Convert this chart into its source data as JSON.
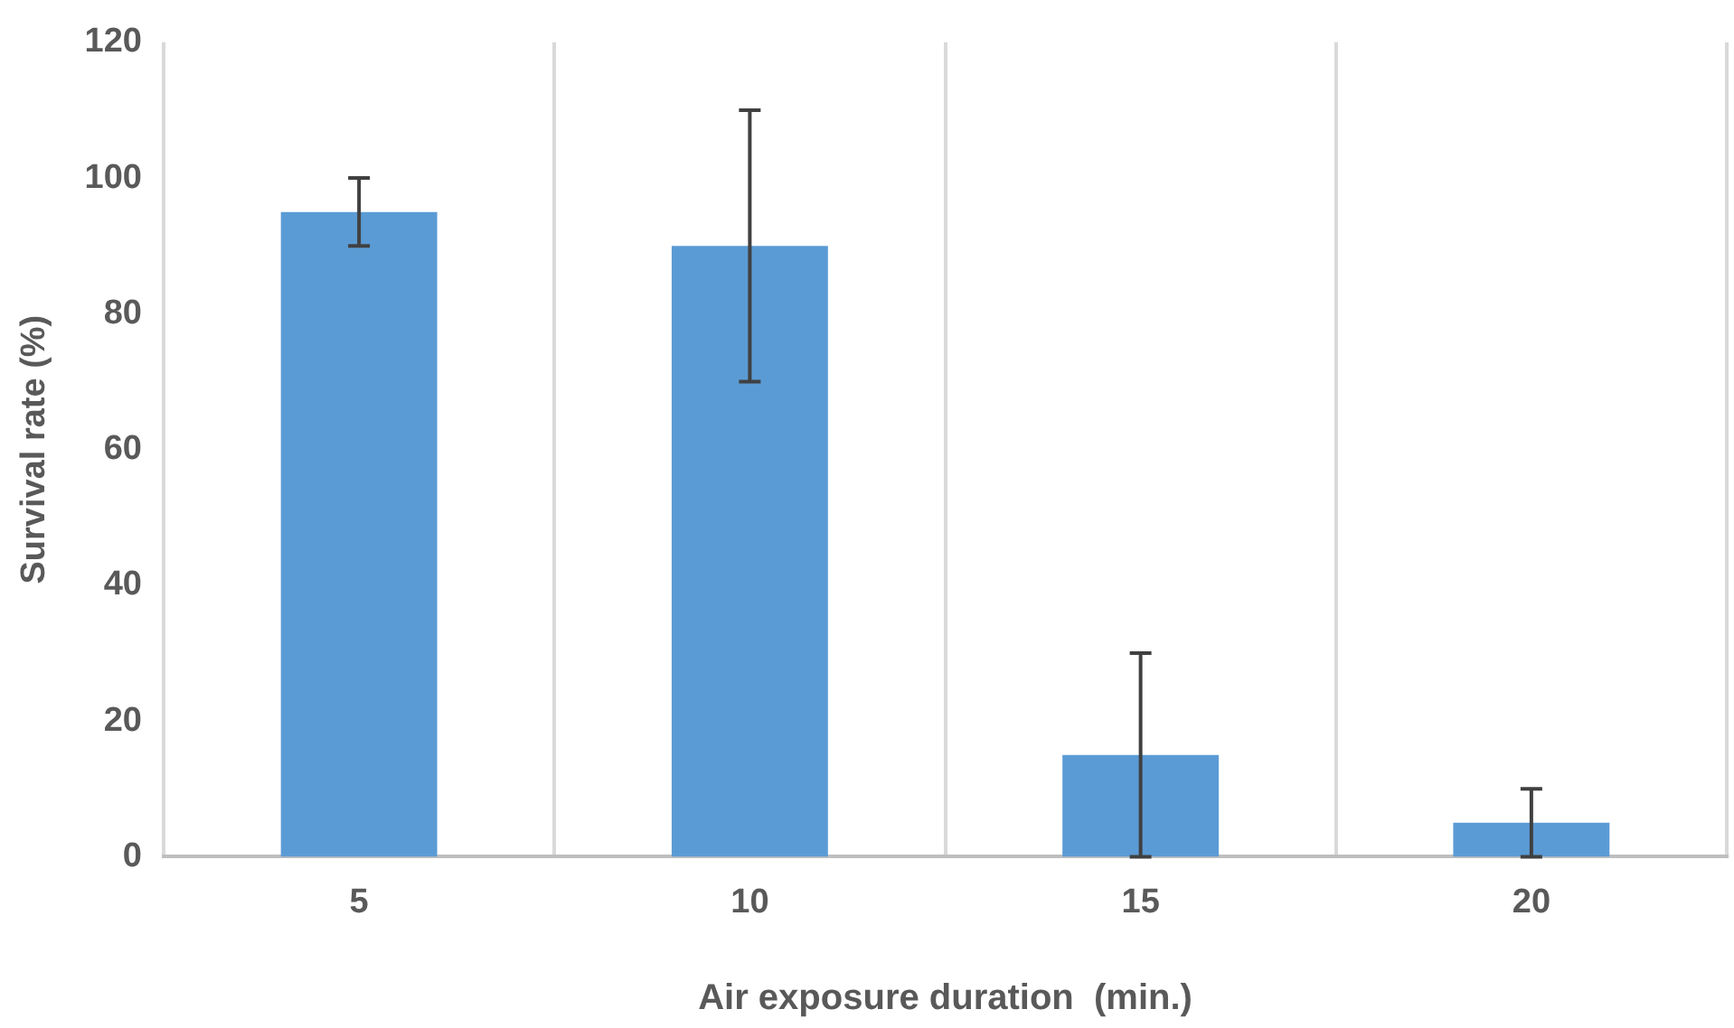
{
  "chart_data": {
    "type": "bar",
    "xlabel": "Air exposure duration  (min.)",
    "ylabel": "Survival rate (%)",
    "categories": [
      "5",
      "10",
      "15",
      "20"
    ],
    "values": [
      95,
      90,
      15,
      5
    ],
    "errors": [
      5,
      20,
      15,
      5
    ],
    "color": "#5b9bd5",
    "ylim": [
      0,
      120
    ],
    "yticks": [
      0,
      20,
      40,
      60,
      80,
      100,
      120
    ],
    "grid": "x",
    "legend": false
  }
}
